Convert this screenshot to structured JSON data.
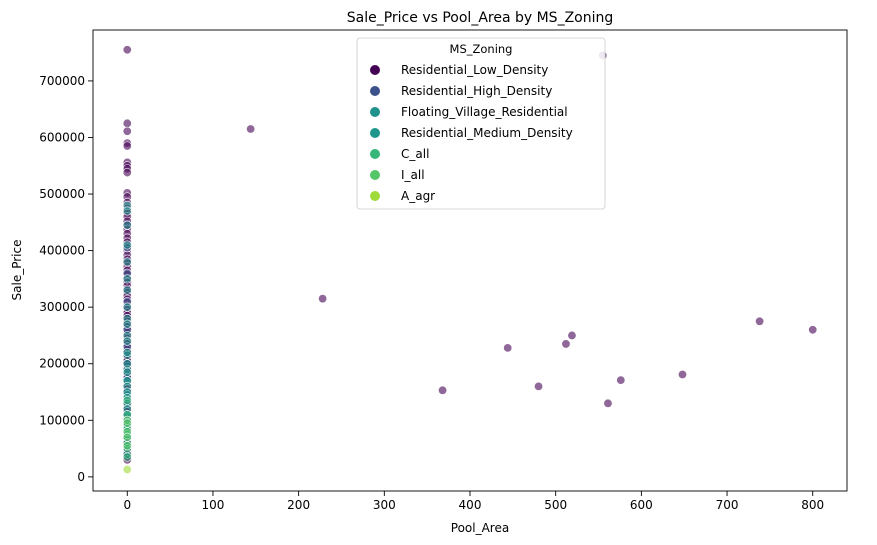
{
  "chart_data": {
    "type": "scatter",
    "title": "Sale_Price vs Pool_Area by MS_Zoning",
    "xlabel": "Pool_Area",
    "ylabel": "Sale_Price",
    "xlim": [
      -40,
      840
    ],
    "ylim": [
      -25000,
      790000
    ],
    "xticks": [
      0,
      100,
      200,
      300,
      400,
      500,
      600,
      700,
      800
    ],
    "yticks": [
      0,
      100000,
      200000,
      300000,
      400000,
      500000,
      600000,
      700000
    ],
    "grid": false,
    "legend_title": "MS_Zoning",
    "legend_placement": "upper center",
    "point_opacity": 0.6,
    "series": [
      {
        "name": "Residential_Low_Density",
        "color": "#440154",
        "x": [
          0,
          0,
          0,
          0,
          0,
          0,
          0,
          0,
          0,
          0,
          0,
          0,
          0,
          0,
          0,
          0,
          0,
          0,
          0,
          0,
          0,
          0,
          0,
          0,
          0,
          0,
          0,
          0,
          0,
          0,
          0,
          0,
          0,
          0,
          0,
          0,
          0,
          0,
          0,
          0,
          0,
          0,
          0,
          0,
          0,
          0,
          0,
          0,
          0,
          0,
          0,
          0,
          0,
          0,
          0,
          0,
          0,
          0,
          0,
          0,
          0,
          0,
          0,
          0,
          0,
          0,
          0,
          0,
          0,
          0,
          0,
          0,
          0,
          0,
          0,
          0,
          0,
          0,
          0,
          0,
          0,
          0,
          0,
          0,
          0,
          0,
          0,
          0,
          0,
          0,
          0,
          0,
          144,
          228,
          368,
          444,
          480,
          512,
          519,
          555,
          561,
          576,
          648,
          738,
          800
        ],
        "y": [
          755000,
          625000,
          611000,
          590000,
          585000,
          556000,
          550000,
          545000,
          538000,
          502000,
          495000,
          485000,
          475000,
          466000,
          460000,
          452000,
          445000,
          438000,
          430000,
          422000,
          415000,
          408000,
          400000,
          392000,
          385000,
          378000,
          372000,
          365000,
          358000,
          350000,
          344000,
          338000,
          332000,
          326000,
          320000,
          314000,
          308000,
          302000,
          296000,
          290000,
          285000,
          280000,
          275000,
          270000,
          265000,
          260000,
          255000,
          250000,
          245000,
          240000,
          235000,
          230000,
          225000,
          220000,
          215000,
          210000,
          205000,
          200000,
          195000,
          190000,
          185000,
          180000,
          175000,
          170000,
          165000,
          160000,
          155000,
          150000,
          145000,
          140000,
          135000,
          130000,
          125000,
          120000,
          115000,
          110000,
          105000,
          100000,
          95000,
          90000,
          85000,
          80000,
          75000,
          70000,
          65000,
          60000,
          55000,
          50000,
          45000,
          40000,
          35000,
          30000,
          615000,
          315000,
          153000,
          228000,
          160000,
          235000,
          250000,
          745000,
          130000,
          171000,
          181000,
          275000,
          260000
        ]
      },
      {
        "name": "Residential_High_Density",
        "color": "#3b528b",
        "x": [
          0,
          0,
          0,
          0,
          0,
          0,
          0,
          0,
          0,
          0,
          0,
          0
        ],
        "y": [
          405000,
          360000,
          310000,
          260000,
          230000,
          200000,
          175000,
          150000,
          130000,
          110000,
          90000,
          60000
        ]
      },
      {
        "name": "Floating_Village_Residential",
        "color": "#21918c",
        "x": [
          0,
          0,
          0,
          0,
          0,
          0,
          0,
          0,
          0,
          0,
          0,
          0,
          0,
          0
        ],
        "y": [
          480000,
          470000,
          445000,
          410000,
          380000,
          350000,
          330000,
          300000,
          280000,
          250000,
          215000,
          190000,
          170000,
          145000
        ]
      },
      {
        "name": "Residential_Medium_Density",
        "color": "#1f968b",
        "x": [
          0,
          0,
          0,
          0,
          0,
          0,
          0,
          0,
          0,
          0,
          0,
          0,
          0,
          0,
          0,
          0,
          0,
          0
        ],
        "y": [
          270000,
          240000,
          220000,
          200000,
          185000,
          170000,
          160000,
          150000,
          140000,
          130000,
          120000,
          110000,
          100000,
          90000,
          80000,
          70000,
          55000,
          40000
        ]
      },
      {
        "name": "C_all",
        "color": "#35b779",
        "x": [
          0,
          0,
          0,
          0,
          0,
          0,
          0
        ],
        "y": [
          135000,
          110000,
          85000,
          75000,
          60000,
          50000,
          35000
        ]
      },
      {
        "name": "I_all",
        "color": "#55c667",
        "x": [
          0,
          0,
          0,
          0,
          0
        ],
        "y": [
          100000,
          95000,
          80000,
          70000,
          55000
        ]
      },
      {
        "name": "A_agr",
        "color": "#a0da39",
        "x": [
          0
        ],
        "y": [
          13000
        ]
      }
    ]
  }
}
